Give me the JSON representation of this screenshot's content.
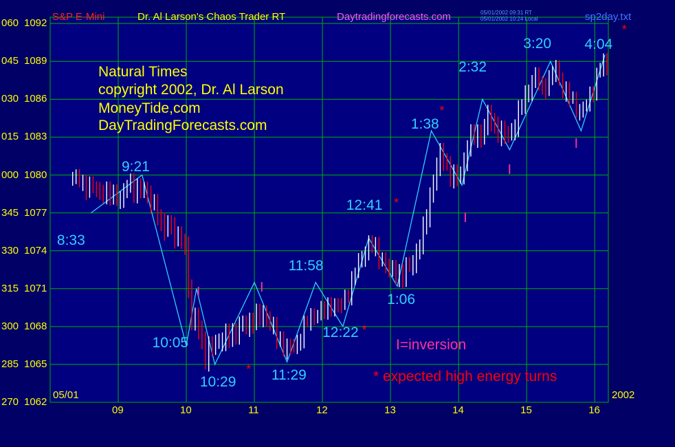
{
  "header": {
    "symbol": "S&P E-Mini",
    "author": "Dr. Al Larson's Chaos Trader RT",
    "website": "Daytradingforecasts.com",
    "stamp_line1": "05/01/2002 09:31 RT",
    "stamp_line2": "05/01/2002 10:24 Local",
    "file": "sp2day.txt"
  },
  "notes": {
    "line1": "Natural Times",
    "line2": "copyright 2002, Dr. Al Larson",
    "line3": "MoneyTide,com",
    "line4": "DayTradingForecasts.com",
    "legend_inversion": "I=inversion",
    "legend_expected": "* expected high energy turns"
  },
  "x_axis": {
    "start_label": "05/01",
    "end_label": "2002"
  },
  "colors": {
    "background": "#000066",
    "plot_bg": "#000080",
    "grid": "#00b000",
    "price": "#ffffff",
    "price_down": "#ff0000",
    "projection": "#33ccff",
    "time_label": "#33ccff",
    "inversion": "#ff3399",
    "axis_text": "#ffff00"
  },
  "chart_data": {
    "type": "line",
    "title": "S&P E-Mini",
    "xlabel": "",
    "ylabel": "",
    "xlim": [
      8.0,
      16.2
    ],
    "ylim": [
      1062,
      1092.5
    ],
    "grid": true,
    "y_ticks": [
      {
        "price": 1062,
        "label": "1062",
        "time_label": "270"
      },
      {
        "price": 1065,
        "label": "1065",
        "time_label": "285"
      },
      {
        "price": 1068,
        "label": "1068",
        "time_label": "300"
      },
      {
        "price": 1071,
        "label": "1071",
        "time_label": "315"
      },
      {
        "price": 1074,
        "label": "1074",
        "time_label": "330"
      },
      {
        "price": 1077,
        "label": "1077",
        "time_label": "345"
      },
      {
        "price": 1080,
        "label": "1080",
        "time_label": "000"
      },
      {
        "price": 1083,
        "label": "1083",
        "time_label": "015"
      },
      {
        "price": 1086,
        "label": "1086",
        "time_label": "030"
      },
      {
        "price": 1089,
        "label": "1089",
        "time_label": "045"
      },
      {
        "price": 1092,
        "label": "1092",
        "time_label": "060"
      }
    ],
    "x_ticks": [
      {
        "hour": 9,
        "label": "09"
      },
      {
        "hour": 10,
        "label": "10"
      },
      {
        "hour": 11,
        "label": "11"
      },
      {
        "hour": 12,
        "label": "12"
      },
      {
        "hour": 13,
        "label": "13"
      },
      {
        "hour": 14,
        "label": "14"
      },
      {
        "hour": 15,
        "label": "15"
      },
      {
        "hour": 16,
        "label": "16"
      }
    ],
    "price_series": [
      [
        8.33,
        1079.9
      ],
      [
        8.55,
        1079.2
      ],
      [
        8.8,
        1078.6
      ],
      [
        9.05,
        1078.2
      ],
      [
        9.15,
        1079.3
      ],
      [
        9.3,
        1078.8
      ],
      [
        9.45,
        1078.4
      ],
      [
        9.55,
        1077.3
      ],
      [
        9.65,
        1075.5
      ],
      [
        9.75,
        1076.4
      ],
      [
        9.85,
        1074.6
      ],
      [
        9.95,
        1075.2
      ],
      [
        10.02,
        1073.0
      ],
      [
        10.05,
        1067.5
      ],
      [
        10.15,
        1068.9
      ],
      [
        10.22,
        1067.0
      ],
      [
        10.28,
        1065.3
      ],
      [
        10.38,
        1066.6
      ],
      [
        10.55,
        1066.9
      ],
      [
        10.75,
        1067.7
      ],
      [
        10.95,
        1068.4
      ],
      [
        11.05,
        1068.7
      ],
      [
        11.15,
        1069.1
      ],
      [
        11.25,
        1068.0
      ],
      [
        11.35,
        1067.0
      ],
      [
        11.5,
        1066.2
      ],
      [
        11.62,
        1066.6
      ],
      [
        11.7,
        1067.7
      ],
      [
        11.85,
        1069.0
      ],
      [
        12.0,
        1069.3
      ],
      [
        12.12,
        1069.8
      ],
      [
        12.28,
        1069.7
      ],
      [
        12.4,
        1071.2
      ],
      [
        12.5,
        1072.6
      ],
      [
        12.6,
        1073.9
      ],
      [
        12.7,
        1074.6
      ],
      [
        12.82,
        1073.8
      ],
      [
        12.95,
        1072.6
      ],
      [
        13.08,
        1072.2
      ],
      [
        13.18,
        1072.0
      ],
      [
        13.32,
        1073.1
      ],
      [
        13.45,
        1074.6
      ],
      [
        13.55,
        1077.5
      ],
      [
        13.65,
        1080.0
      ],
      [
        13.75,
        1081.8
      ],
      [
        13.85,
        1080.3
      ],
      [
        13.95,
        1079.5
      ],
      [
        14.05,
        1080.2
      ],
      [
        14.12,
        1082.2
      ],
      [
        14.22,
        1083.1
      ],
      [
        14.35,
        1083.2
      ],
      [
        14.45,
        1084.8
      ],
      [
        14.55,
        1083.5
      ],
      [
        14.65,
        1083.2
      ],
      [
        14.75,
        1083.1
      ],
      [
        14.85,
        1084.4
      ],
      [
        14.95,
        1085.8
      ],
      [
        15.05,
        1087.2
      ],
      [
        15.15,
        1087.8
      ],
      [
        15.22,
        1086.8
      ],
      [
        15.32,
        1087.4
      ],
      [
        15.42,
        1088.6
      ],
      [
        15.52,
        1087.0
      ],
      [
        15.62,
        1086.4
      ],
      [
        15.72,
        1085.4
      ],
      [
        15.85,
        1085.3
      ],
      [
        15.95,
        1086.5
      ],
      [
        16.05,
        1088.3
      ],
      [
        16.12,
        1089.0
      ],
      [
        16.2,
        1088.4
      ]
    ],
    "projection_line": [
      [
        8.6,
        1077.0
      ],
      [
        9.35,
        1080.0
      ],
      [
        10.0,
        1066.5
      ],
      [
        10.15,
        1071.0
      ],
      [
        10.42,
        1065.0
      ],
      [
        11.0,
        1071.5
      ],
      [
        11.48,
        1065.2
      ],
      [
        11.9,
        1071.5
      ],
      [
        12.3,
        1068.0
      ],
      [
        12.68,
        1075.0
      ],
      [
        13.1,
        1071.2
      ],
      [
        13.6,
        1083.5
      ],
      [
        14.05,
        1079.2
      ],
      [
        14.35,
        1086.0
      ],
      [
        14.75,
        1082.0
      ],
      [
        15.35,
        1089.0
      ],
      [
        15.8,
        1083.5
      ],
      [
        16.15,
        1089.5
      ]
    ],
    "time_labels": [
      {
        "text": "8:33",
        "x": 8.1,
        "y": 1074.8
      },
      {
        "text": "9:21",
        "x": 9.05,
        "y": 1080.6
      },
      {
        "text": "10:05",
        "x": 9.5,
        "y": 1066.7
      },
      {
        "text": "10:29",
        "x": 10.2,
        "y": 1063.6
      },
      {
        "text": "11:29",
        "x": 11.25,
        "y": 1064.1
      },
      {
        "text": "11:58",
        "x": 11.5,
        "y": 1072.8
      },
      {
        "text": "12:22",
        "x": 12.0,
        "y": 1067.5
      },
      {
        "text": "12:41",
        "x": 12.35,
        "y": 1077.6
      },
      {
        "text": "1:06",
        "x": 12.95,
        "y": 1070.1
      },
      {
        "text": "1:38",
        "x": 13.3,
        "y": 1084.0
      },
      {
        "text": "2:32",
        "x": 14.0,
        "y": 1088.5
      },
      {
        "text": "3:20",
        "x": 14.95,
        "y": 1090.4
      },
      {
        "text": "4:04",
        "x": 15.85,
        "y": 1090.3
      }
    ],
    "expected_turn_marks": [
      {
        "x": 10.88,
        "y": 1064.6
      },
      {
        "x": 12.58,
        "y": 1067.7
      },
      {
        "x": 13.05,
        "y": 1077.8
      },
      {
        "x": 13.72,
        "y": 1085.1
      },
      {
        "x": 16.4,
        "y": 1091.5
      }
    ],
    "inversion_marks": [
      {
        "x": 10.15,
        "y": 1070.7
      },
      {
        "x": 11.08,
        "y": 1071.1
      },
      {
        "x": 14.07,
        "y": 1076.6
      },
      {
        "x": 14.72,
        "y": 1080.4
      },
      {
        "x": 15.7,
        "y": 1082.5
      }
    ]
  }
}
